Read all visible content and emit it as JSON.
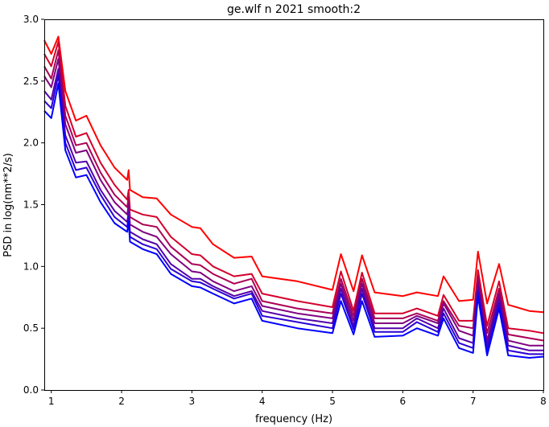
{
  "chart_data": {
    "type": "line",
    "title": "ge.wlf n 2021 smooth:2",
    "xlabel": "frequency (Hz)",
    "ylabel": "PSD in log(nm**2/s)",
    "xlim": [
      0.9,
      8.0
    ],
    "ylim": [
      0.0,
      3.0
    ],
    "xticks": [
      1,
      2,
      3,
      4,
      5,
      6,
      7,
      8
    ],
    "xtick_labels": [
      "1",
      "2",
      "3",
      "4",
      "5",
      "6",
      "7",
      "8"
    ],
    "yticks": [
      0.0,
      0.5,
      1.0,
      1.5,
      2.0,
      2.5,
      3.0
    ],
    "ytick_labels": [
      "0.0",
      "0.5",
      "1.0",
      "1.5",
      "2.0",
      "2.5",
      "3.0"
    ],
    "grid": false,
    "legend": "none",
    "series": [
      {
        "color": "#ff0000",
        "x": [
          0.9,
          1.0,
          1.1,
          1.2,
          1.35,
          1.5,
          1.7,
          1.9,
          2.08,
          2.1,
          2.12,
          2.3,
          2.5,
          2.7,
          3.0,
          3.12,
          3.3,
          3.6,
          3.85,
          4.0,
          4.5,
          5.0,
          5.12,
          5.3,
          5.42,
          5.6,
          6.0,
          6.2,
          6.5,
          6.58,
          6.8,
          7.0,
          7.07,
          7.2,
          7.37,
          7.5,
          7.8,
          8.0
        ],
        "values": [
          2.83,
          2.72,
          2.86,
          2.42,
          2.18,
          2.22,
          1.98,
          1.8,
          1.7,
          1.78,
          1.62,
          1.56,
          1.55,
          1.42,
          1.32,
          1.31,
          1.18,
          1.07,
          1.08,
          0.92,
          0.88,
          0.81,
          1.1,
          0.8,
          1.09,
          0.79,
          0.76,
          0.79,
          0.76,
          0.92,
          0.72,
          0.73,
          1.12,
          0.7,
          1.02,
          0.69,
          0.64,
          0.63
        ]
      },
      {
        "color": "#d4002b",
        "x": [
          0.9,
          1.0,
          1.1,
          1.2,
          1.35,
          1.5,
          1.7,
          1.9,
          2.08,
          2.1,
          2.12,
          2.3,
          2.5,
          2.7,
          3.0,
          3.12,
          3.3,
          3.6,
          3.85,
          4.0,
          4.5,
          5.0,
          5.12,
          5.3,
          5.42,
          5.6,
          6.0,
          6.2,
          6.5,
          6.58,
          6.8,
          7.0,
          7.07,
          7.2,
          7.37,
          7.5,
          7.8,
          8.0
        ],
        "values": [
          2.72,
          2.62,
          2.82,
          2.3,
          2.05,
          2.08,
          1.84,
          1.66,
          1.54,
          1.62,
          1.46,
          1.42,
          1.4,
          1.24,
          1.1,
          1.09,
          1.0,
          0.92,
          0.94,
          0.78,
          0.72,
          0.67,
          0.96,
          0.64,
          0.95,
          0.62,
          0.62,
          0.66,
          0.6,
          0.77,
          0.56,
          0.56,
          0.97,
          0.52,
          0.88,
          0.5,
          0.48,
          0.46
        ]
      },
      {
        "color": "#aa0055",
        "x": [
          0.9,
          1.0,
          1.1,
          1.2,
          1.35,
          1.5,
          1.7,
          1.9,
          2.08,
          2.1,
          2.12,
          2.3,
          2.5,
          2.7,
          3.0,
          3.12,
          3.3,
          3.6,
          3.85,
          4.0,
          4.5,
          5.0,
          5.12,
          5.3,
          5.42,
          5.6,
          6.0,
          6.2,
          6.5,
          6.58,
          6.8,
          7.0,
          7.07,
          7.2,
          7.37,
          7.5,
          7.8,
          8.0
        ],
        "values": [
          2.62,
          2.52,
          2.75,
          2.22,
          1.98,
          2.0,
          1.76,
          1.58,
          1.48,
          1.56,
          1.4,
          1.34,
          1.32,
          1.16,
          1.02,
          1.01,
          0.94,
          0.86,
          0.9,
          0.72,
          0.66,
          0.62,
          0.9,
          0.6,
          0.9,
          0.58,
          0.58,
          0.62,
          0.56,
          0.72,
          0.52,
          0.5,
          0.92,
          0.46,
          0.82,
          0.45,
          0.42,
          0.4
        ]
      },
      {
        "color": "#800080",
        "x": [
          0.9,
          1.0,
          1.1,
          1.2,
          1.35,
          1.5,
          1.7,
          1.9,
          2.08,
          2.1,
          2.12,
          2.3,
          2.5,
          2.7,
          3.0,
          3.12,
          3.3,
          3.6,
          3.85,
          4.0,
          4.5,
          5.0,
          5.12,
          5.3,
          5.42,
          5.6,
          6.0,
          6.2,
          6.5,
          6.58,
          6.8,
          7.0,
          7.07,
          7.2,
          7.37,
          7.5,
          7.8,
          8.0
        ],
        "values": [
          2.54,
          2.45,
          2.68,
          2.15,
          1.92,
          1.94,
          1.7,
          1.52,
          1.42,
          1.5,
          1.34,
          1.28,
          1.24,
          1.1,
          0.96,
          0.95,
          0.88,
          0.8,
          0.84,
          0.68,
          0.62,
          0.58,
          0.86,
          0.56,
          0.86,
          0.54,
          0.54,
          0.6,
          0.54,
          0.7,
          0.48,
          0.44,
          0.88,
          0.4,
          0.78,
          0.4,
          0.36,
          0.36
        ]
      },
      {
        "color": "#5500aa",
        "x": [
          0.9,
          1.0,
          1.1,
          1.2,
          1.35,
          1.5,
          1.7,
          1.9,
          2.08,
          2.1,
          2.12,
          2.3,
          2.5,
          2.7,
          3.0,
          3.12,
          3.3,
          3.6,
          3.85,
          4.0,
          4.5,
          5.0,
          5.12,
          5.3,
          5.42,
          5.6,
          6.0,
          6.2,
          6.5,
          6.58,
          6.8,
          7.0,
          7.07,
          7.2,
          7.37,
          7.5,
          7.8,
          8.0
        ],
        "values": [
          2.42,
          2.35,
          2.6,
          2.06,
          1.84,
          1.85,
          1.62,
          1.45,
          1.36,
          1.44,
          1.28,
          1.22,
          1.18,
          1.02,
          0.9,
          0.9,
          0.84,
          0.76,
          0.8,
          0.64,
          0.58,
          0.54,
          0.82,
          0.52,
          0.82,
          0.5,
          0.5,
          0.58,
          0.5,
          0.66,
          0.42,
          0.38,
          0.84,
          0.36,
          0.74,
          0.36,
          0.32,
          0.32
        ]
      },
      {
        "color": "#2b00d4",
        "x": [
          0.9,
          1.0,
          1.1,
          1.2,
          1.35,
          1.5,
          1.7,
          1.9,
          2.08,
          2.1,
          2.12,
          2.3,
          2.5,
          2.7,
          3.0,
          3.12,
          3.3,
          3.6,
          3.85,
          4.0,
          4.5,
          5.0,
          5.12,
          5.3,
          5.42,
          5.6,
          6.0,
          6.2,
          6.5,
          6.58,
          6.8,
          7.0,
          7.07,
          7.2,
          7.37,
          7.5,
          7.8,
          8.0
        ],
        "values": [
          2.34,
          2.28,
          2.55,
          2.0,
          1.78,
          1.8,
          1.58,
          1.4,
          1.32,
          1.4,
          1.24,
          1.18,
          1.14,
          0.98,
          0.88,
          0.87,
          0.82,
          0.74,
          0.78,
          0.6,
          0.55,
          0.5,
          0.78,
          0.49,
          0.78,
          0.47,
          0.47,
          0.55,
          0.47,
          0.62,
          0.38,
          0.34,
          0.8,
          0.32,
          0.7,
          0.32,
          0.29,
          0.29
        ]
      },
      {
        "color": "#0000ff",
        "x": [
          0.9,
          1.0,
          1.1,
          1.2,
          1.35,
          1.5,
          1.7,
          1.9,
          2.08,
          2.1,
          2.12,
          2.3,
          2.5,
          2.7,
          3.0,
          3.12,
          3.3,
          3.6,
          3.85,
          4.0,
          4.5,
          5.0,
          5.12,
          5.3,
          5.42,
          5.6,
          6.0,
          6.2,
          6.5,
          6.58,
          6.8,
          7.0,
          7.07,
          7.2,
          7.37,
          7.5,
          7.8,
          8.0
        ],
        "values": [
          2.26,
          2.2,
          2.48,
          1.94,
          1.72,
          1.74,
          1.52,
          1.35,
          1.28,
          1.36,
          1.2,
          1.14,
          1.1,
          0.94,
          0.84,
          0.83,
          0.78,
          0.7,
          0.74,
          0.56,
          0.5,
          0.46,
          0.72,
          0.45,
          0.72,
          0.43,
          0.44,
          0.5,
          0.44,
          0.58,
          0.34,
          0.3,
          0.76,
          0.28,
          0.66,
          0.28,
          0.26,
          0.27
        ]
      }
    ]
  }
}
